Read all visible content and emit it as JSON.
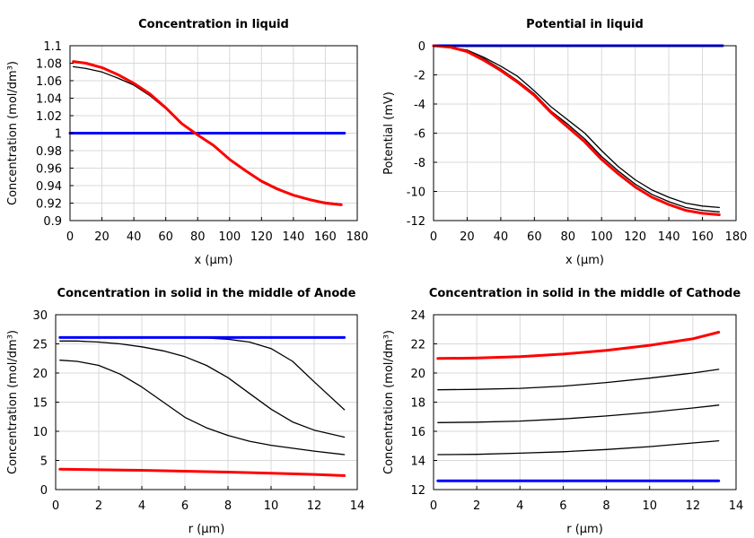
{
  "chart_data": [
    {
      "type": "line",
      "title": "Concentration in liquid",
      "xlabel": "x (µm)",
      "ylabel": "Concentration (mol/dm³)",
      "xlim": [
        0,
        180
      ],
      "ylim": [
        0.9,
        1.1
      ],
      "xticks": [
        0,
        20,
        40,
        60,
        80,
        100,
        120,
        140,
        160,
        180
      ],
      "yticks": [
        0.9,
        0.92,
        0.94,
        0.96,
        0.98,
        1,
        1.02,
        1.04,
        1.06,
        1.08,
        1.1
      ],
      "grid": true,
      "series": [
        {
          "color": "#0000ff",
          "width": 3,
          "x": [
            0,
            172
          ],
          "y": [
            1.0,
            1.0
          ]
        },
        {
          "color": "#000000",
          "width": 1.3,
          "x": [
            2,
            10,
            20,
            30,
            40,
            50,
            60,
            70,
            80,
            90,
            100,
            110,
            120,
            130,
            140,
            150,
            160,
            170
          ],
          "y": [
            1.076,
            1.074,
            1.07,
            1.063,
            1.055,
            1.043,
            1.028,
            1.011,
            0.998,
            0.985,
            0.97,
            0.957,
            0.946,
            0.937,
            0.929,
            0.924,
            0.921,
            0.919
          ]
        },
        {
          "color": "#ff0000",
          "width": 3,
          "x": [
            2,
            10,
            20,
            30,
            40,
            50,
            60,
            70,
            80,
            90,
            100,
            110,
            120,
            130,
            140,
            150,
            160,
            170
          ],
          "y": [
            1.082,
            1.08,
            1.075,
            1.067,
            1.057,
            1.045,
            1.029,
            1.011,
            0.998,
            0.986,
            0.97,
            0.957,
            0.945,
            0.936,
            0.929,
            0.924,
            0.92,
            0.918
          ]
        }
      ]
    },
    {
      "type": "line",
      "title": "Potential in liquid",
      "xlabel": "x (µm)",
      "ylabel": "Potential (mV)",
      "xlim": [
        0,
        180
      ],
      "ylim": [
        -12,
        0
      ],
      "xticks": [
        0,
        20,
        40,
        60,
        80,
        100,
        120,
        140,
        160,
        180
      ],
      "yticks": [
        -12,
        -10,
        -8,
        -6,
        -4,
        -2,
        0
      ],
      "grid": true,
      "series": [
        {
          "color": "#0000ff",
          "width": 3,
          "x": [
            0,
            172
          ],
          "y": [
            0,
            0
          ]
        },
        {
          "color": "#000000",
          "width": 1.3,
          "x": [
            0,
            10,
            20,
            30,
            40,
            50,
            60,
            70,
            80,
            90,
            100,
            110,
            120,
            130,
            140,
            150,
            160,
            170
          ],
          "y": [
            0,
            -0.1,
            -0.3,
            -0.8,
            -1.4,
            -2.1,
            -3.1,
            -4.2,
            -5.1,
            -6.0,
            -7.2,
            -8.3,
            -9.2,
            -9.9,
            -10.4,
            -10.8,
            -11.0,
            -11.1
          ]
        },
        {
          "color": "#000000",
          "width": 1.3,
          "x": [
            0,
            10,
            20,
            30,
            40,
            50,
            60,
            70,
            80,
            90,
            100,
            110,
            120,
            130,
            140,
            150,
            160,
            170
          ],
          "y": [
            0,
            -0.1,
            -0.4,
            -0.9,
            -1.6,
            -2.4,
            -3.3,
            -4.5,
            -5.4,
            -6.4,
            -7.6,
            -8.6,
            -9.5,
            -10.2,
            -10.7,
            -11.1,
            -11.3,
            -11.4
          ]
        },
        {
          "color": "#ff0000",
          "width": 3,
          "x": [
            0,
            10,
            20,
            30,
            40,
            50,
            60,
            70,
            80,
            90,
            100,
            110,
            120,
            130,
            140,
            150,
            160,
            170
          ],
          "y": [
            0,
            -0.1,
            -0.4,
            -1.0,
            -1.7,
            -2.5,
            -3.4,
            -4.6,
            -5.6,
            -6.6,
            -7.8,
            -8.8,
            -9.7,
            -10.4,
            -10.9,
            -11.3,
            -11.5,
            -11.6
          ]
        }
      ]
    },
    {
      "type": "line",
      "title": "Concentration in solid in the middle of Anode",
      "xlabel": "r (µm)",
      "ylabel": "Concentration (mol/dm³)",
      "xlim": [
        0,
        14
      ],
      "ylim": [
        0,
        30
      ],
      "xticks": [
        0,
        2,
        4,
        6,
        8,
        10,
        12,
        14
      ],
      "yticks": [
        0,
        5,
        10,
        15,
        20,
        25,
        30
      ],
      "grid": true,
      "series": [
        {
          "color": "#000000",
          "width": 1.3,
          "x": [
            0.2,
            1,
            2,
            3,
            4,
            5,
            6,
            7,
            8,
            9,
            10,
            11,
            12,
            13.4
          ],
          "y": [
            26.1,
            26.1,
            26.1,
            26.1,
            26.1,
            26.1,
            26.05,
            26.0,
            25.8,
            25.3,
            24.2,
            22.0,
            18.5,
            13.7
          ]
        },
        {
          "color": "#000000",
          "width": 1.3,
          "x": [
            0.2,
            1,
            2,
            3,
            4,
            5,
            6,
            7,
            8,
            9,
            10,
            11,
            12,
            13.4
          ],
          "y": [
            25.5,
            25.5,
            25.3,
            25.0,
            24.5,
            23.8,
            22.8,
            21.3,
            19.2,
            16.5,
            13.8,
            11.6,
            10.2,
            9.0
          ]
        },
        {
          "color": "#000000",
          "width": 1.3,
          "x": [
            0.2,
            1,
            2,
            3,
            4,
            5,
            6,
            7,
            8,
            9,
            10,
            11,
            12,
            13.4
          ],
          "y": [
            22.2,
            22.0,
            21.3,
            19.8,
            17.6,
            15.0,
            12.4,
            10.6,
            9.3,
            8.3,
            7.6,
            7.1,
            6.6,
            6.0
          ]
        },
        {
          "color": "#0000ff",
          "width": 3,
          "x": [
            0.2,
            13.4
          ],
          "y": [
            26.1,
            26.1
          ]
        },
        {
          "color": "#ff0000",
          "width": 3,
          "x": [
            0.2,
            2,
            4,
            6,
            8,
            10,
            12,
            13.4
          ],
          "y": [
            3.5,
            3.4,
            3.3,
            3.15,
            3.0,
            2.8,
            2.6,
            2.4
          ]
        }
      ]
    },
    {
      "type": "line",
      "title": "Concentration in solid in the middle of Cathode",
      "xlabel": "r (µm)",
      "ylabel": "Concentration (mol/dm³)",
      "xlim": [
        0,
        14
      ],
      "ylim": [
        12,
        24
      ],
      "xticks": [
        0,
        2,
        4,
        6,
        8,
        10,
        12,
        14
      ],
      "yticks": [
        12,
        14,
        16,
        18,
        20,
        22,
        24
      ],
      "grid": true,
      "series": [
        {
          "color": "#0000ff",
          "width": 3,
          "x": [
            0.2,
            13.2
          ],
          "y": [
            12.6,
            12.6
          ]
        },
        {
          "color": "#000000",
          "width": 1.3,
          "x": [
            0.2,
            2,
            4,
            6,
            8,
            10,
            12,
            13.2
          ],
          "y": [
            14.4,
            14.42,
            14.5,
            14.6,
            14.75,
            14.95,
            15.2,
            15.35
          ]
        },
        {
          "color": "#000000",
          "width": 1.3,
          "x": [
            0.2,
            2,
            4,
            6,
            8,
            10,
            12,
            13.2
          ],
          "y": [
            16.6,
            16.63,
            16.7,
            16.85,
            17.05,
            17.3,
            17.6,
            17.8
          ]
        },
        {
          "color": "#000000",
          "width": 1.3,
          "x": [
            0.2,
            2,
            4,
            6,
            8,
            10,
            12,
            13.2
          ],
          "y": [
            18.85,
            18.88,
            18.95,
            19.1,
            19.35,
            19.65,
            20.0,
            20.25
          ]
        },
        {
          "color": "#ff0000",
          "width": 3,
          "x": [
            0.2,
            2,
            4,
            6,
            8,
            10,
            12,
            13.2
          ],
          "y": [
            21.0,
            21.03,
            21.12,
            21.3,
            21.55,
            21.9,
            22.35,
            22.8
          ]
        }
      ]
    }
  ]
}
